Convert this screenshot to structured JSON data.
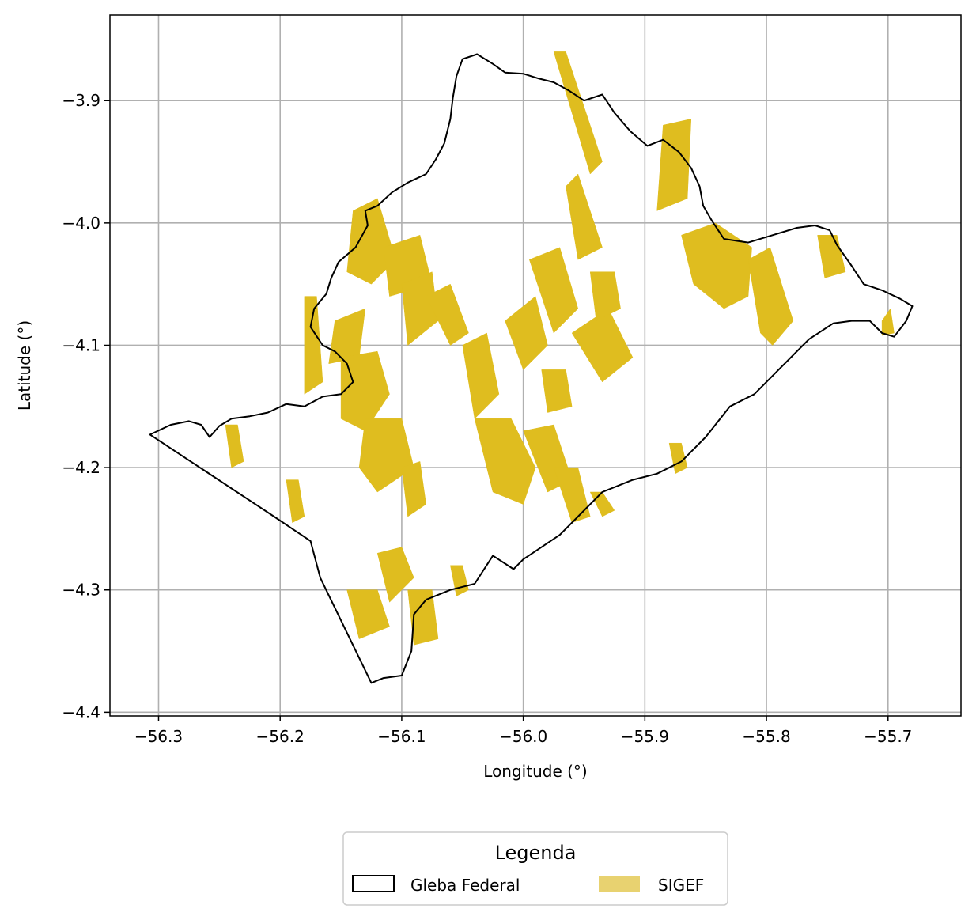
{
  "chart_data": {
    "type": "map",
    "xlabel": "Longitude (°)",
    "ylabel": "Latitude (°)",
    "xlim": [
      -56.34,
      -55.64
    ],
    "ylim": [
      -4.403,
      -3.83
    ],
    "x_ticks": [
      -56.3,
      -56.2,
      -56.1,
      -56.0,
      -55.9,
      -55.8,
      -55.7
    ],
    "x_tick_labels": [
      "−56.3",
      "−56.2",
      "−56.1",
      "−56.0",
      "−55.9",
      "−55.8",
      "−55.7"
    ],
    "y_ticks": [
      -3.9,
      -4.0,
      -4.1,
      -4.2,
      -4.3,
      -4.4
    ],
    "y_tick_labels": [
      "−3.9",
      "−4.0",
      "−4.1",
      "−4.2",
      "−4.3",
      "−4.4"
    ],
    "grid": true,
    "legend": {
      "title": "Legenda",
      "placement": "bottom-center",
      "entries": [
        {
          "label": "Gleba Federal",
          "style": "outline",
          "color": "#000000"
        },
        {
          "label": "SIGEF",
          "style": "fill",
          "color": "#e8d270"
        }
      ]
    },
    "series": [
      {
        "name": "Gleba Federal",
        "style": "outline",
        "outline": [
          [
            -56.307,
            -4.173
          ],
          [
            -56.29,
            -4.165
          ],
          [
            -56.275,
            -4.162
          ],
          [
            -56.265,
            -4.165
          ],
          [
            -56.258,
            -4.175
          ],
          [
            -56.25,
            -4.166
          ],
          [
            -56.24,
            -4.16
          ],
          [
            -56.225,
            -4.158
          ],
          [
            -56.21,
            -4.155
          ],
          [
            -56.195,
            -4.148
          ],
          [
            -56.18,
            -4.15
          ],
          [
            -56.165,
            -4.142
          ],
          [
            -56.15,
            -4.14
          ],
          [
            -56.14,
            -4.13
          ],
          [
            -56.145,
            -4.115
          ],
          [
            -56.155,
            -4.105
          ],
          [
            -56.165,
            -4.1
          ],
          [
            -56.175,
            -4.085
          ],
          [
            -56.172,
            -4.07
          ],
          [
            -56.162,
            -4.058
          ],
          [
            -56.158,
            -4.045
          ],
          [
            -56.152,
            -4.032
          ],
          [
            -56.138,
            -4.02
          ],
          [
            -56.128,
            -4.002
          ],
          [
            -56.13,
            -3.99
          ],
          [
            -56.12,
            -3.986
          ],
          [
            -56.108,
            -3.975
          ],
          [
            -56.095,
            -3.967
          ],
          [
            -56.08,
            -3.96
          ],
          [
            -56.072,
            -3.948
          ],
          [
            -56.065,
            -3.935
          ],
          [
            -56.06,
            -3.915
          ],
          [
            -56.058,
            -3.898
          ],
          [
            -56.055,
            -3.88
          ],
          [
            -56.05,
            -3.866
          ],
          [
            -56.038,
            -3.862
          ],
          [
            -56.025,
            -3.87
          ],
          [
            -56.015,
            -3.877
          ],
          [
            -56.0,
            -3.878
          ],
          [
            -55.987,
            -3.882
          ],
          [
            -55.975,
            -3.885
          ],
          [
            -55.962,
            -3.892
          ],
          [
            -55.95,
            -3.9
          ],
          [
            -55.935,
            -3.895
          ],
          [
            -55.925,
            -3.91
          ],
          [
            -55.912,
            -3.925
          ],
          [
            -55.898,
            -3.937
          ],
          [
            -55.885,
            -3.932
          ],
          [
            -55.872,
            -3.942
          ],
          [
            -55.862,
            -3.955
          ],
          [
            -55.855,
            -3.97
          ],
          [
            -55.852,
            -3.986
          ],
          [
            -55.845,
            -3.998
          ],
          [
            -55.835,
            -4.013
          ],
          [
            -55.815,
            -4.016
          ],
          [
            -55.795,
            -4.01
          ],
          [
            -55.775,
            -4.004
          ],
          [
            -55.76,
            -4.002
          ],
          [
            -55.748,
            -4.006
          ],
          [
            -55.742,
            -4.018
          ],
          [
            -55.73,
            -4.035
          ],
          [
            -55.72,
            -4.05
          ],
          [
            -55.705,
            -4.055
          ],
          [
            -55.69,
            -4.062
          ],
          [
            -55.68,
            -4.068
          ],
          [
            -55.685,
            -4.08
          ],
          [
            -55.695,
            -4.093
          ],
          [
            -55.705,
            -4.09
          ],
          [
            -55.715,
            -4.08
          ],
          [
            -55.73,
            -4.08
          ],
          [
            -55.745,
            -4.082
          ],
          [
            -55.765,
            -4.095
          ],
          [
            -55.79,
            -4.12
          ],
          [
            -55.81,
            -4.14
          ],
          [
            -55.83,
            -4.15
          ],
          [
            -55.85,
            -4.175
          ],
          [
            -55.87,
            -4.195
          ],
          [
            -55.89,
            -4.205
          ],
          [
            -55.91,
            -4.21
          ],
          [
            -55.935,
            -4.22
          ],
          [
            -55.955,
            -4.24
          ],
          [
            -55.97,
            -4.255
          ],
          [
            -55.985,
            -4.265
          ],
          [
            -56.0,
            -4.275
          ],
          [
            -56.008,
            -4.283
          ],
          [
            -56.025,
            -4.272
          ],
          [
            -56.04,
            -4.295
          ],
          [
            -56.06,
            -4.3
          ],
          [
            -56.08,
            -4.308
          ],
          [
            -56.09,
            -4.32
          ],
          [
            -56.092,
            -4.35
          ],
          [
            -56.1,
            -4.37
          ],
          [
            -56.115,
            -4.372
          ],
          [
            -56.125,
            -4.376
          ],
          [
            -56.167,
            -4.29
          ],
          [
            -56.175,
            -4.26
          ],
          [
            -56.205,
            -4.24
          ],
          [
            -56.307,
            -4.173
          ]
        ]
      },
      {
        "name": "SIGEF",
        "style": "fill",
        "polygons": [
          [
            [
              -55.975,
              -3.86
            ],
            [
              -55.965,
              -3.86
            ],
            [
              -55.935,
              -3.95
            ],
            [
              -55.945,
              -3.96
            ]
          ],
          [
            [
              -55.965,
              -3.97
            ],
            [
              -55.955,
              -3.96
            ],
            [
              -55.935,
              -4.02
            ],
            [
              -55.955,
              -4.03
            ]
          ],
          [
            [
              -55.885,
              -3.92
            ],
            [
              -55.862,
              -3.915
            ],
            [
              -55.865,
              -3.98
            ],
            [
              -55.89,
              -3.99
            ]
          ],
          [
            [
              -55.87,
              -4.01
            ],
            [
              -55.842,
              -4.0
            ],
            [
              -55.812,
              -4.02
            ],
            [
              -55.815,
              -4.06
            ],
            [
              -55.835,
              -4.07
            ],
            [
              -55.86,
              -4.05
            ]
          ],
          [
            [
              -55.815,
              -4.03
            ],
            [
              -55.797,
              -4.02
            ],
            [
              -55.778,
              -4.08
            ],
            [
              -55.795,
              -4.1
            ],
            [
              -55.805,
              -4.09
            ]
          ],
          [
            [
              -55.758,
              -4.01
            ],
            [
              -55.742,
              -4.01
            ],
            [
              -55.735,
              -4.04
            ],
            [
              -55.752,
              -4.045
            ]
          ],
          [
            [
              -55.705,
              -4.08
            ],
            [
              -55.698,
              -4.07
            ],
            [
              -55.695,
              -4.09
            ],
            [
              -55.705,
              -4.092
            ]
          ],
          [
            [
              -56.14,
              -3.99
            ],
            [
              -56.12,
              -3.98
            ],
            [
              -56.105,
              -4.03
            ],
            [
              -56.125,
              -4.05
            ],
            [
              -56.145,
              -4.04
            ]
          ],
          [
            [
              -56.115,
              -4.02
            ],
            [
              -56.085,
              -4.01
            ],
            [
              -56.075,
              -4.05
            ],
            [
              -56.11,
              -4.06
            ]
          ],
          [
            [
              -56.1,
              -4.05
            ],
            [
              -56.075,
              -4.04
            ],
            [
              -56.07,
              -4.08
            ],
            [
              -56.095,
              -4.1
            ]
          ],
          [
            [
              -56.155,
              -4.08
            ],
            [
              -56.13,
              -4.07
            ],
            [
              -56.135,
              -4.11
            ],
            [
              -56.16,
              -4.115
            ]
          ],
          [
            [
              -56.18,
              -4.06
            ],
            [
              -56.17,
              -4.06
            ],
            [
              -56.165,
              -4.13
            ],
            [
              -56.18,
              -4.14
            ]
          ],
          [
            [
              -56.15,
              -4.11
            ],
            [
              -56.12,
              -4.105
            ],
            [
              -56.11,
              -4.14
            ],
            [
              -56.13,
              -4.17
            ],
            [
              -56.15,
              -4.16
            ]
          ],
          [
            [
              -56.13,
              -4.16
            ],
            [
              -56.1,
              -4.16
            ],
            [
              -56.09,
              -4.2
            ],
            [
              -56.12,
              -4.22
            ],
            [
              -56.135,
              -4.2
            ]
          ],
          [
            [
              -56.1,
              -4.2
            ],
            [
              -56.085,
              -4.195
            ],
            [
              -56.08,
              -4.23
            ],
            [
              -56.095,
              -4.24
            ]
          ],
          [
            [
              -56.08,
              -4.06
            ],
            [
              -56.06,
              -4.05
            ],
            [
              -56.045,
              -4.09
            ],
            [
              -56.06,
              -4.1
            ]
          ],
          [
            [
              -56.05,
              -4.1
            ],
            [
              -56.03,
              -4.09
            ],
            [
              -56.02,
              -4.14
            ],
            [
              -56.04,
              -4.16
            ]
          ],
          [
            [
              -56.015,
              -4.08
            ],
            [
              -55.99,
              -4.06
            ],
            [
              -55.98,
              -4.1
            ],
            [
              -56.0,
              -4.12
            ]
          ],
          [
            [
              -55.995,
              -4.03
            ],
            [
              -55.97,
              -4.02
            ],
            [
              -55.955,
              -4.07
            ],
            [
              -55.975,
              -4.09
            ]
          ],
          [
            [
              -55.96,
              -4.09
            ],
            [
              -55.93,
              -4.07
            ],
            [
              -55.91,
              -4.11
            ],
            [
              -55.935,
              -4.13
            ]
          ],
          [
            [
              -55.945,
              -4.04
            ],
            [
              -55.925,
              -4.04
            ],
            [
              -55.92,
              -4.07
            ],
            [
              -55.94,
              -4.08
            ]
          ],
          [
            [
              -56.04,
              -4.16
            ],
            [
              -56.01,
              -4.16
            ],
            [
              -55.99,
              -4.2
            ],
            [
              -56.0,
              -4.23
            ],
            [
              -56.025,
              -4.22
            ]
          ],
          [
            [
              -56.0,
              -4.17
            ],
            [
              -55.975,
              -4.165
            ],
            [
              -55.96,
              -4.21
            ],
            [
              -55.98,
              -4.22
            ]
          ],
          [
            [
              -55.975,
              -4.2
            ],
            [
              -55.955,
              -4.2
            ],
            [
              -55.945,
              -4.24
            ],
            [
              -55.96,
              -4.245
            ]
          ],
          [
            [
              -56.12,
              -4.27
            ],
            [
              -56.1,
              -4.265
            ],
            [
              -56.09,
              -4.29
            ],
            [
              -56.11,
              -4.31
            ]
          ],
          [
            [
              -56.145,
              -4.3
            ],
            [
              -56.12,
              -4.3
            ],
            [
              -56.11,
              -4.33
            ],
            [
              -56.135,
              -4.34
            ]
          ],
          [
            [
              -56.095,
              -4.3
            ],
            [
              -56.075,
              -4.3
            ],
            [
              -56.07,
              -4.34
            ],
            [
              -56.09,
              -4.345
            ]
          ],
          [
            [
              -55.985,
              -4.12
            ],
            [
              -55.965,
              -4.12
            ],
            [
              -55.96,
              -4.15
            ],
            [
              -55.98,
              -4.155
            ]
          ],
          [
            [
              -55.88,
              -4.18
            ],
            [
              -55.87,
              -4.18
            ],
            [
              -55.865,
              -4.2
            ],
            [
              -55.875,
              -4.205
            ]
          ],
          [
            [
              -56.195,
              -4.21
            ],
            [
              -56.185,
              -4.21
            ],
            [
              -56.18,
              -4.24
            ],
            [
              -56.19,
              -4.245
            ]
          ],
          [
            [
              -56.245,
              -4.165
            ],
            [
              -56.235,
              -4.165
            ],
            [
              -56.23,
              -4.195
            ],
            [
              -56.24,
              -4.2
            ]
          ],
          [
            [
              -56.06,
              -4.28
            ],
            [
              -56.05,
              -4.28
            ],
            [
              -56.045,
              -4.3
            ],
            [
              -56.055,
              -4.305
            ]
          ],
          [
            [
              -55.945,
              -4.22
            ],
            [
              -55.935,
              -4.22
            ],
            [
              -55.925,
              -4.235
            ],
            [
              -55.935,
              -4.24
            ]
          ]
        ]
      }
    ]
  }
}
